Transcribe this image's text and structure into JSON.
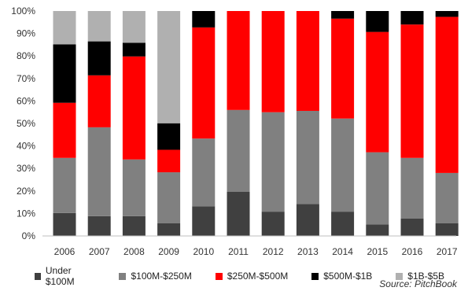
{
  "chart_data": {
    "type": "bar",
    "stacked": true,
    "categories": [
      "2006",
      "2007",
      "2008",
      "2009",
      "2010",
      "2011",
      "2012",
      "2013",
      "2014",
      "2015",
      "2016",
      "2017"
    ],
    "yticks": [
      "0%",
      "10%",
      "20%",
      "30%",
      "40%",
      "50%",
      "60%",
      "70%",
      "80%",
      "90%",
      "100%"
    ],
    "ylim": [
      0,
      100
    ],
    "series": [
      {
        "name": "Under $100M",
        "color": "#404040",
        "values": [
          10.2,
          8.8,
          8.8,
          5.6,
          13.2,
          19.7,
          10.8,
          14.2,
          10.8,
          5.1,
          7.8,
          5.6
        ]
      },
      {
        "name": "$100M-$250M",
        "color": "#808080",
        "values": [
          24.5,
          39.5,
          25.2,
          22.7,
          30.1,
          36.3,
          44.2,
          41.4,
          41.4,
          32.1,
          26.9,
          22.4
        ]
      },
      {
        "name": "$250M-$500M",
        "color": "#ff0000",
        "values": [
          24.5,
          23.1,
          45.8,
          10.0,
          49.4,
          44.0,
          45.0,
          44.4,
          44.4,
          53.5,
          59.3,
          69.4
        ]
      },
      {
        "name": "$500M-$1B",
        "color": "#000000",
        "values": [
          26.0,
          15.1,
          6.1,
          11.8,
          7.3,
          0,
          0,
          0,
          3.4,
          9.3,
          6.0,
          2.6
        ]
      },
      {
        "name": "$1B-$5B",
        "color": "#b0b0b0",
        "values": [
          14.8,
          13.5,
          14.1,
          49.9,
          0,
          0,
          0,
          0,
          0,
          0,
          0,
          0
        ]
      }
    ],
    "grid": false,
    "legend_position": "bottom",
    "source": "Source: PitchBook"
  }
}
